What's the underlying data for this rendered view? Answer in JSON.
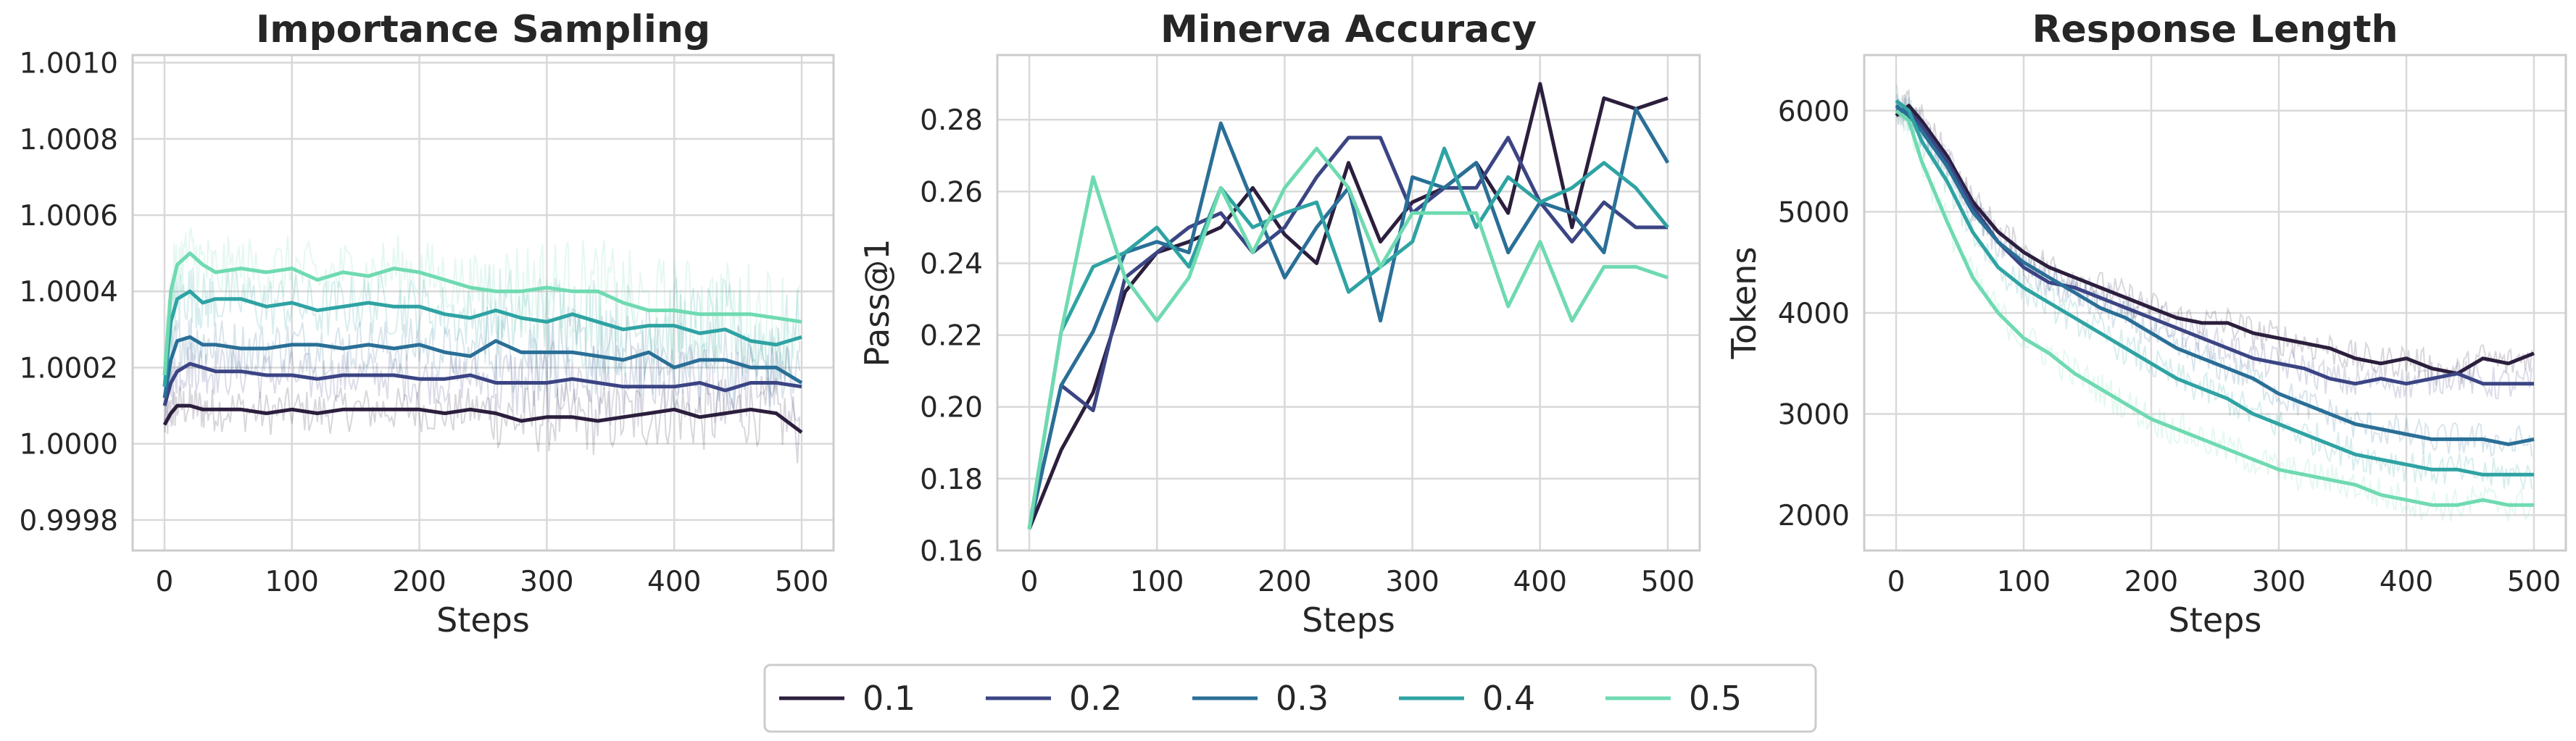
{
  "colors": {
    "0.1": "#2c1e3d",
    "0.2": "#3b4584",
    "0.3": "#2a6f97",
    "0.4": "#2fa3a3",
    "0.5": "#6fdab1",
    "grid": "#d9d9d9",
    "spine": "#cccccc"
  },
  "legend": {
    "placement": "bottom-center",
    "entries": [
      "0.1",
      "0.2",
      "0.3",
      "0.4",
      "0.5"
    ]
  },
  "chart_data": [
    {
      "type": "line",
      "title": "Importance Sampling",
      "xlabel": "Steps",
      "ylabel": "",
      "xlim": [
        -25,
        525
      ],
      "ylim": [
        0.99972,
        1.00102
      ],
      "xticks": [
        0,
        100,
        200,
        300,
        400,
        500
      ],
      "yticks": [
        0.9998,
        1.0,
        1.0002,
        1.0004,
        1.0006,
        1.0008,
        1.001
      ],
      "ytick_labels": [
        "0.9998",
        "1.0000",
        "1.0002",
        "1.0004",
        "1.0006",
        "1.0008",
        "1.0010"
      ],
      "grid": true,
      "raw_noise": true,
      "series": [
        {
          "name": "0.1",
          "x": [
            0,
            5,
            10,
            20,
            30,
            40,
            60,
            80,
            100,
            120,
            140,
            160,
            180,
            200,
            220,
            240,
            260,
            280,
            300,
            320,
            340,
            360,
            380,
            400,
            420,
            440,
            460,
            480,
            500
          ],
          "y": [
            1.00005,
            1.00008,
            1.0001,
            1.0001,
            1.00009,
            1.00009,
            1.00009,
            1.00008,
            1.00009,
            1.00008,
            1.00009,
            1.00009,
            1.00009,
            1.00009,
            1.00008,
            1.00009,
            1.00008,
            1.00006,
            1.00007,
            1.00007,
            1.00006,
            1.00007,
            1.00008,
            1.00009,
            1.00007,
            1.00008,
            1.00009,
            1.00008,
            1.00003
          ]
        },
        {
          "name": "0.2",
          "x": [
            0,
            5,
            10,
            20,
            30,
            40,
            60,
            80,
            100,
            120,
            140,
            160,
            180,
            200,
            220,
            240,
            260,
            280,
            300,
            320,
            340,
            360,
            380,
            400,
            420,
            440,
            460,
            480,
            500
          ],
          "y": [
            1.0001,
            1.00016,
            1.00019,
            1.00021,
            1.0002,
            1.00019,
            1.00019,
            1.00018,
            1.00018,
            1.00017,
            1.00018,
            1.00018,
            1.00018,
            1.00017,
            1.00017,
            1.00018,
            1.00016,
            1.00016,
            1.00016,
            1.00017,
            1.00016,
            1.00015,
            1.00015,
            1.00015,
            1.00016,
            1.00014,
            1.00016,
            1.00016,
            1.00015
          ]
        },
        {
          "name": "0.3",
          "x": [
            0,
            5,
            10,
            20,
            30,
            40,
            60,
            80,
            100,
            120,
            140,
            160,
            180,
            200,
            220,
            240,
            260,
            280,
            300,
            320,
            340,
            360,
            380,
            400,
            420,
            440,
            460,
            480,
            500
          ],
          "y": [
            1.00012,
            1.00022,
            1.00027,
            1.00028,
            1.00026,
            1.00026,
            1.00025,
            1.00025,
            1.00026,
            1.00026,
            1.00025,
            1.00026,
            1.00025,
            1.00026,
            1.00024,
            1.00023,
            1.00027,
            1.00024,
            1.00024,
            1.00024,
            1.00023,
            1.00022,
            1.00024,
            1.0002,
            1.00022,
            1.00022,
            1.0002,
            1.0002,
            1.00016
          ]
        },
        {
          "name": "0.4",
          "x": [
            0,
            5,
            10,
            20,
            30,
            40,
            60,
            80,
            100,
            120,
            140,
            160,
            180,
            200,
            220,
            240,
            260,
            280,
            300,
            320,
            340,
            360,
            380,
            400,
            420,
            440,
            460,
            480,
            500
          ],
          "y": [
            1.00015,
            1.00032,
            1.00038,
            1.0004,
            1.00037,
            1.00038,
            1.00038,
            1.00036,
            1.00037,
            1.00035,
            1.00036,
            1.00037,
            1.00036,
            1.00036,
            1.00034,
            1.00033,
            1.00035,
            1.00033,
            1.00032,
            1.00034,
            1.00032,
            1.0003,
            1.00031,
            1.00031,
            1.00029,
            1.0003,
            1.00027,
            1.00026,
            1.00028
          ]
        },
        {
          "name": "0.5",
          "x": [
            0,
            5,
            10,
            20,
            30,
            40,
            60,
            80,
            100,
            120,
            140,
            160,
            180,
            200,
            220,
            240,
            260,
            280,
            300,
            320,
            340,
            360,
            380,
            400,
            420,
            440,
            460,
            480,
            500
          ],
          "y": [
            1.00018,
            1.0004,
            1.00047,
            1.0005,
            1.00047,
            1.00045,
            1.00046,
            1.00045,
            1.00046,
            1.00043,
            1.00045,
            1.00044,
            1.00046,
            1.00045,
            1.00043,
            1.00041,
            1.0004,
            1.0004,
            1.00041,
            1.0004,
            1.0004,
            1.00037,
            1.00035,
            1.00035,
            1.00034,
            1.00034,
            1.00034,
            1.00033,
            1.00032
          ]
        }
      ]
    },
    {
      "type": "line",
      "title": "Minerva Accuracy",
      "xlabel": "Steps",
      "ylabel": "Pass@1",
      "xlim": [
        -25,
        525
      ],
      "ylim": [
        0.16,
        0.298
      ],
      "xticks": [
        0,
        100,
        200,
        300,
        400,
        500
      ],
      "yticks": [
        0.16,
        0.18,
        0.2,
        0.22,
        0.24,
        0.26,
        0.28
      ],
      "ytick_labels": [
        "0.16",
        "0.18",
        "0.20",
        "0.22",
        "0.24",
        "0.26",
        "0.28"
      ],
      "grid": true,
      "raw_noise": false,
      "series": [
        {
          "name": "0.1",
          "x": [
            0,
            25,
            50,
            75,
            100,
            125,
            150,
            175,
            200,
            225,
            250,
            275,
            300,
            325,
            350,
            375,
            400,
            425,
            450,
            475,
            500
          ],
          "y": [
            0.166,
            0.188,
            0.204,
            0.232,
            0.243,
            0.246,
            0.25,
            0.261,
            0.248,
            0.24,
            0.268,
            0.246,
            0.257,
            0.261,
            0.268,
            0.254,
            0.29,
            0.25,
            0.286,
            0.283,
            0.286
          ]
        },
        {
          "name": "0.2",
          "x": [
            0,
            25,
            50,
            75,
            100,
            125,
            150,
            175,
            200,
            225,
            250,
            275,
            300,
            325,
            350,
            375,
            400,
            425,
            450,
            475,
            500
          ],
          "y": [
            0.166,
            0.206,
            0.199,
            0.236,
            0.243,
            0.25,
            0.254,
            0.243,
            0.25,
            0.264,
            0.275,
            0.275,
            0.254,
            0.261,
            0.261,
            0.275,
            0.257,
            0.246,
            0.257,
            0.25,
            0.25
          ]
        },
        {
          "name": "0.3",
          "x": [
            0,
            25,
            50,
            75,
            100,
            125,
            150,
            175,
            200,
            225,
            250,
            275,
            300,
            325,
            350,
            375,
            400,
            425,
            450,
            475,
            500
          ],
          "y": [
            0.166,
            0.206,
            0.221,
            0.243,
            0.246,
            0.243,
            0.279,
            0.257,
            0.236,
            0.25,
            0.261,
            0.224,
            0.264,
            0.261,
            0.268,
            0.243,
            0.257,
            0.254,
            0.243,
            0.283,
            0.268
          ]
        },
        {
          "name": "0.4",
          "x": [
            0,
            25,
            50,
            75,
            100,
            125,
            150,
            175,
            200,
            225,
            250,
            275,
            300,
            325,
            350,
            375,
            400,
            425,
            450,
            475,
            500
          ],
          "y": [
            0.166,
            0.221,
            0.239,
            0.243,
            0.25,
            0.239,
            0.261,
            0.25,
            0.254,
            0.257,
            0.232,
            0.239,
            0.246,
            0.272,
            0.25,
            0.264,
            0.257,
            0.261,
            0.268,
            0.261,
            0.25
          ]
        },
        {
          "name": "0.5",
          "x": [
            0,
            25,
            50,
            75,
            100,
            125,
            150,
            175,
            200,
            225,
            250,
            275,
            300,
            325,
            350,
            375,
            400,
            425,
            450,
            475,
            500
          ],
          "y": [
            0.166,
            0.221,
            0.264,
            0.236,
            0.224,
            0.236,
            0.261,
            0.243,
            0.261,
            0.272,
            0.261,
            0.239,
            0.254,
            0.254,
            0.254,
            0.228,
            0.246,
            0.224,
            0.239,
            0.239,
            0.236
          ]
        }
      ]
    },
    {
      "type": "line",
      "title": "Response Length",
      "xlabel": "Steps",
      "ylabel": "Tokens",
      "xlim": [
        -25,
        525
      ],
      "ylim": [
        1650,
        6550
      ],
      "xticks": [
        0,
        100,
        200,
        300,
        400,
        500
      ],
      "yticks": [
        2000,
        3000,
        4000,
        5000,
        6000
      ],
      "ytick_labels": [
        "2000",
        "3000",
        "4000",
        "5000",
        "6000"
      ],
      "grid": true,
      "raw_noise": true,
      "series": [
        {
          "name": "0.1",
          "x": [
            0,
            10,
            20,
            40,
            60,
            80,
            100,
            120,
            140,
            160,
            180,
            200,
            220,
            240,
            260,
            280,
            300,
            320,
            340,
            360,
            380,
            400,
            420,
            440,
            460,
            480,
            500
          ],
          "y": [
            5950,
            6050,
            5900,
            5550,
            5100,
            4800,
            4600,
            4450,
            4350,
            4250,
            4150,
            4050,
            3950,
            3900,
            3900,
            3800,
            3750,
            3700,
            3650,
            3550,
            3500,
            3550,
            3450,
            3400,
            3550,
            3500,
            3600
          ]
        },
        {
          "name": "0.2",
          "x": [
            0,
            10,
            20,
            40,
            60,
            80,
            100,
            120,
            140,
            160,
            180,
            200,
            220,
            240,
            260,
            280,
            300,
            320,
            340,
            360,
            380,
            400,
            420,
            440,
            460,
            480,
            500
          ],
          "y": [
            6000,
            6000,
            5850,
            5500,
            5050,
            4700,
            4450,
            4300,
            4250,
            4150,
            4050,
            3950,
            3850,
            3750,
            3650,
            3550,
            3500,
            3450,
            3350,
            3300,
            3350,
            3300,
            3350,
            3400,
            3300,
            3300,
            3300
          ]
        },
        {
          "name": "0.3",
          "x": [
            0,
            10,
            20,
            40,
            60,
            80,
            100,
            120,
            140,
            160,
            180,
            200,
            220,
            240,
            260,
            280,
            300,
            320,
            340,
            360,
            380,
            400,
            420,
            440,
            460,
            480,
            500
          ],
          "y": [
            6050,
            5950,
            5800,
            5450,
            5000,
            4700,
            4500,
            4350,
            4200,
            4050,
            3950,
            3800,
            3650,
            3550,
            3450,
            3350,
            3200,
            3100,
            3000,
            2900,
            2850,
            2800,
            2750,
            2750,
            2750,
            2700,
            2750
          ]
        },
        {
          "name": "0.4",
          "x": [
            0,
            10,
            20,
            40,
            60,
            80,
            100,
            120,
            140,
            160,
            180,
            200,
            220,
            240,
            260,
            280,
            300,
            320,
            340,
            360,
            380,
            400,
            420,
            440,
            460,
            480,
            500
          ],
          "y": [
            6100,
            6000,
            5700,
            5300,
            4800,
            4450,
            4250,
            4100,
            3950,
            3800,
            3650,
            3500,
            3350,
            3250,
            3150,
            3000,
            2900,
            2800,
            2700,
            2600,
            2550,
            2500,
            2450,
            2450,
            2400,
            2400,
            2400
          ]
        },
        {
          "name": "0.5",
          "x": [
            0,
            10,
            20,
            40,
            60,
            80,
            100,
            120,
            140,
            160,
            180,
            200,
            220,
            240,
            260,
            280,
            300,
            320,
            340,
            360,
            380,
            400,
            420,
            440,
            460,
            480,
            500
          ],
          "y": [
            6000,
            5900,
            5500,
            4900,
            4350,
            4000,
            3750,
            3600,
            3400,
            3250,
            3100,
            2950,
            2850,
            2750,
            2650,
            2550,
            2450,
            2400,
            2350,
            2300,
            2200,
            2150,
            2100,
            2100,
            2150,
            2100,
            2100
          ]
        }
      ]
    }
  ]
}
